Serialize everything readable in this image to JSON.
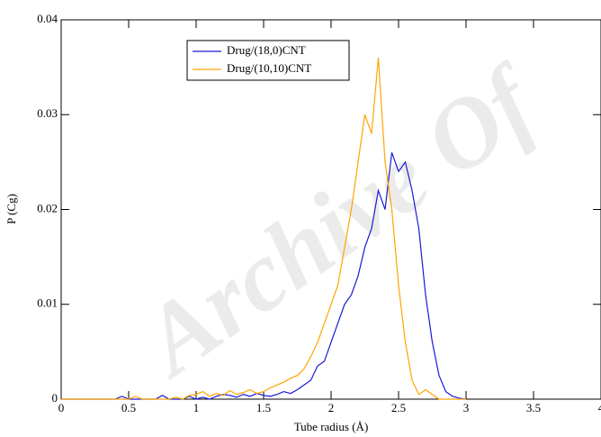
{
  "chart_data": {
    "type": "line",
    "x_label": "Tube radius (Å)",
    "y_label": "P (Cg)",
    "watermark": "Archive Of",
    "x": [
      0,
      0.05,
      0.1,
      0.15,
      0.2,
      0.25,
      0.3,
      0.35,
      0.4,
      0.45,
      0.5,
      0.55,
      0.6,
      0.65,
      0.7,
      0.75,
      0.8,
      0.85,
      0.9,
      0.95,
      1,
      1.05,
      1.1,
      1.15,
      1.2,
      1.25,
      1.3,
      1.35,
      1.4,
      1.45,
      1.5,
      1.55,
      1.6,
      1.65,
      1.7,
      1.75,
      1.8,
      1.85,
      1.9,
      1.95,
      2,
      2.05,
      2.1,
      2.15,
      2.2,
      2.25,
      2.3,
      2.35,
      2.4,
      2.45,
      2.5,
      2.55,
      2.6,
      2.65,
      2.7,
      2.75,
      2.8,
      2.85,
      2.9,
      2.95,
      3
    ],
    "series": [
      {
        "name": "Drug/(18,0)CNT",
        "color": "#1a1ad6",
        "values": [
          0,
          0,
          0,
          0,
          0,
          0,
          0,
          0,
          0,
          0.0003,
          0,
          0,
          0,
          0,
          0,
          0.0004,
          0,
          0,
          0,
          0.0003,
          0,
          0.0002,
          0,
          0.0003,
          0.0005,
          0.0004,
          0.0002,
          0.0005,
          0.0003,
          0.0006,
          0.0004,
          0.0003,
          0.0005,
          0.0008,
          0.0006,
          0.001,
          0.0015,
          0.002,
          0.0035,
          0.004,
          0.006,
          0.008,
          0.01,
          0.011,
          0.013,
          0.016,
          0.018,
          0.022,
          0.02,
          0.026,
          0.024,
          0.025,
          0.022,
          0.018,
          0.011,
          0.006,
          0.0025,
          0.0008,
          0.0003,
          0.0001,
          0
        ]
      },
      {
        "name": "Drug/(10,10)CNT",
        "color": "#ffa500",
        "values": [
          0,
          0,
          0,
          0,
          0,
          0,
          0,
          0,
          0,
          0,
          0,
          0.0003,
          0,
          0,
          0,
          0,
          0,
          0.0002,
          0,
          0.0004,
          0.0005,
          0.0008,
          0.0003,
          0.0006,
          0.0004,
          0.0009,
          0.0005,
          0.0007,
          0.001,
          0.0006,
          0.0008,
          0.0012,
          0.0015,
          0.0018,
          0.0022,
          0.0025,
          0.0032,
          0.0045,
          0.006,
          0.008,
          0.01,
          0.012,
          0.016,
          0.02,
          0.025,
          0.03,
          0.028,
          0.036,
          0.025,
          0.02,
          0.012,
          0.006,
          0.002,
          0.0005,
          0.001,
          0.0005,
          0,
          0,
          0,
          0,
          0
        ]
      }
    ],
    "xlim": [
      0,
      4
    ],
    "ylim": [
      0,
      0.04
    ],
    "xticks": [
      0,
      0.5,
      1,
      1.5,
      2,
      2.5,
      3,
      3.5,
      4
    ],
    "yticks": [
      0,
      0.01,
      0.02,
      0.03,
      0.04
    ],
    "grid": false,
    "legend": "upper left"
  }
}
